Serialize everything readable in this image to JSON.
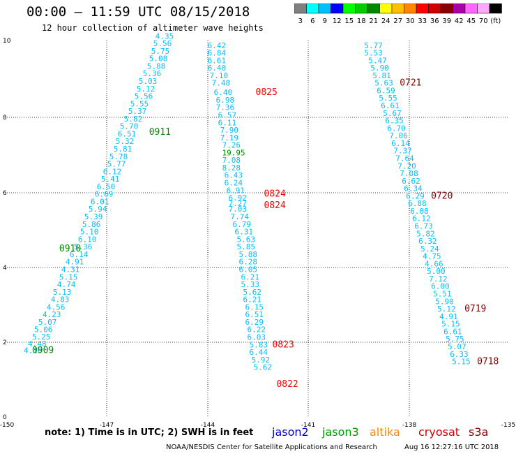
{
  "title": "00:00 – 11:59 UTC 08/15/2018",
  "subtitle": "12 hour collection of altimeter wave heights",
  "note": "note:  1) Time is in UTC;  2) SWH is in feet",
  "footer_credit": "NOAA/NESDIS Center for Satellite Applications and Research",
  "footer_timestamp": "Aug 16 12:27:16 UTC 2018",
  "satellites": [
    {
      "name": "jason2",
      "color": "#0000cc"
    },
    {
      "name": "jason3",
      "color": "#009900"
    },
    {
      "name": "altika",
      "color": "#ff8800"
    },
    {
      "name": "cryosat",
      "color": "#cc0000"
    },
    {
      "name": "s3a",
      "color": "#880000"
    }
  ],
  "colorbar": {
    "labels": [
      "3",
      "6",
      "9",
      "12",
      "15",
      "18",
      "21",
      "24",
      "27",
      "30",
      "33",
      "36",
      "39",
      "42",
      "45",
      "70",
      "(ft)"
    ],
    "colors": [
      "#808080",
      "#00ffff",
      "#00bfff",
      "#0000ff",
      "#00ff00",
      "#00cc00",
      "#008800",
      "#ffff00",
      "#ffbf00",
      "#ff8800",
      "#ff0000",
      "#cc0000",
      "#880000",
      "#aa00aa",
      "#ff66ff",
      "#ffaaff",
      "#000000"
    ]
  },
  "chart_data": {
    "type": "scatter",
    "xlim": [
      -150,
      -138
    ],
    "ylim": [
      0,
      10
    ],
    "x_ticks": [
      "-150",
      "-147",
      "-144",
      "-141",
      "-138",
      "-135"
    ],
    "y_ticks": [
      "0",
      "2",
      "4",
      "6",
      "8",
      "10"
    ],
    "grid": true,
    "tracks": [
      {
        "points": [
          [
            -149.6,
            1.7,
            "4.16"
          ],
          [
            -149.5,
            1.87,
            "4.48"
          ],
          [
            -149.4,
            2.06,
            "5.25"
          ],
          [
            -149.35,
            2.25,
            "5.06"
          ],
          [
            -149.25,
            2.45,
            "5.07"
          ],
          [
            -149.15,
            2.65,
            "4.23"
          ],
          [
            -149.05,
            2.85,
            "4.56"
          ],
          [
            -148.95,
            3.05,
            "4.83"
          ],
          [
            -148.9,
            3.25,
            "5.13"
          ],
          [
            -148.8,
            3.45,
            "4.74"
          ],
          [
            -148.75,
            3.65,
            "5.15"
          ],
          [
            -148.7,
            3.85,
            "4.31"
          ],
          [
            -148.6,
            4.05,
            "4.91"
          ],
          [
            -148.5,
            4.25,
            "6.14"
          ],
          [
            -148.4,
            4.45,
            "5.36"
          ],
          [
            -148.3,
            4.65,
            "6.10"
          ],
          [
            -148.25,
            4.85,
            "5.10"
          ],
          [
            -148.2,
            5.05,
            "5.86"
          ],
          [
            -148.15,
            5.25,
            "5.39"
          ],
          [
            -148.05,
            5.45,
            "5.94"
          ],
          [
            -148.0,
            5.65,
            "6.01"
          ],
          [
            -147.9,
            5.85,
            "6.69"
          ],
          [
            -147.85,
            6.05,
            "6.50"
          ],
          [
            -147.75,
            6.25,
            "5.41"
          ],
          [
            -147.7,
            6.45,
            "6.12"
          ],
          [
            -147.6,
            6.65,
            "5.77"
          ],
          [
            -147.55,
            6.85,
            "5.78"
          ],
          [
            -147.45,
            7.05,
            "5.81"
          ],
          [
            -147.4,
            7.25,
            "5.32"
          ],
          [
            -147.35,
            7.45,
            "6.51"
          ],
          [
            -147.3,
            7.65,
            "5.70"
          ],
          [
            -147.2,
            7.85,
            "5.82"
          ],
          [
            -147.1,
            8.05,
            "5.37"
          ],
          [
            -147.05,
            8.25,
            "5.55"
          ],
          [
            -146.95,
            8.45,
            "5.56"
          ],
          [
            -146.9,
            8.65,
            "5.12"
          ],
          [
            -146.85,
            8.85,
            "5.03"
          ],
          [
            -146.75,
            9.05,
            "5.36"
          ],
          [
            -146.65,
            9.25,
            "5.88"
          ],
          [
            -146.6,
            9.45,
            "5.08"
          ],
          [
            -146.55,
            9.65,
            "5.75"
          ],
          [
            -146.5,
            9.85,
            "5.56"
          ],
          [
            -146.45,
            10.05,
            "4.35"
          ]
        ],
        "time_labels": [
          [
            -149.4,
            1.7,
            "0909",
            "#008800"
          ],
          [
            -148.75,
            4.4,
            "0910",
            "#008800"
          ],
          [
            -146.6,
            7.5,
            "0911",
            "#008800"
          ]
        ]
      },
      {
        "points": [
          [
            -145.2,
            9.8,
            "6.42"
          ],
          [
            -145.2,
            9.6,
            "6.84"
          ],
          [
            -145.2,
            9.4,
            "6.61"
          ],
          [
            -145.2,
            9.2,
            "6.40"
          ],
          [
            -145.15,
            9.0,
            "7.10"
          ],
          [
            -145.1,
            8.8,
            "7.48"
          ],
          [
            -145.05,
            8.55,
            "6.40"
          ],
          [
            -145.0,
            8.35,
            "6.98"
          ],
          [
            -145.0,
            8.15,
            "7.36"
          ],
          [
            -144.95,
            7.95,
            "6.57"
          ],
          [
            -144.95,
            7.75,
            "6.11"
          ],
          [
            -144.9,
            7.55,
            "7.90"
          ],
          [
            -144.9,
            7.35,
            "7.19"
          ],
          [
            -144.85,
            7.15,
            "7.26"
          ],
          [
            -144.85,
            6.95,
            "19.95",
            "#008800"
          ],
          [
            -144.85,
            6.75,
            "7.08"
          ],
          [
            -144.85,
            6.55,
            "8.28"
          ],
          [
            -144.8,
            6.35,
            "6.43"
          ],
          [
            -144.8,
            6.15,
            "6.24"
          ],
          [
            -144.75,
            5.95,
            "6.91"
          ],
          [
            -144.7,
            5.75,
            "6.92"
          ],
          [
            -144.7,
            5.6,
            "7.27"
          ],
          [
            -144.7,
            5.45,
            "7.03"
          ],
          [
            -144.65,
            5.25,
            "7.74"
          ],
          [
            -144.6,
            5.05,
            "6.79"
          ],
          [
            -144.55,
            4.85,
            "6.31"
          ],
          [
            -144.5,
            4.65,
            "5.63"
          ],
          [
            -144.5,
            4.45,
            "5.85"
          ],
          [
            -144.45,
            4.25,
            "5.88"
          ],
          [
            -144.45,
            4.05,
            "6.28"
          ],
          [
            -144.45,
            3.85,
            "6.05"
          ],
          [
            -144.4,
            3.65,
            "6.21"
          ],
          [
            -144.4,
            3.45,
            "5.33"
          ],
          [
            -144.35,
            3.25,
            "5.62"
          ],
          [
            -144.35,
            3.05,
            "6.21"
          ],
          [
            -144.3,
            2.85,
            "6.15"
          ],
          [
            -144.3,
            2.65,
            "6.51"
          ],
          [
            -144.3,
            2.45,
            "6.29"
          ],
          [
            -144.25,
            2.25,
            "6.22"
          ],
          [
            -144.25,
            2.05,
            "6.03"
          ],
          [
            -144.2,
            1.85,
            "5.83"
          ],
          [
            -144.2,
            1.65,
            "6.44"
          ],
          [
            -144.15,
            1.45,
            "5.92"
          ],
          [
            -144.1,
            1.25,
            "5.62"
          ]
        ],
        "time_labels": [
          [
            -144.05,
            8.55,
            "0825",
            "#ff0000"
          ],
          [
            -143.85,
            5.85,
            "0824",
            "#ff0000"
          ],
          [
            -143.85,
            5.55,
            "0824",
            "#ff0000"
          ],
          [
            -143.65,
            1.85,
            "0823",
            "#ff0000"
          ],
          [
            -143.55,
            0.8,
            "0822",
            "#ff0000"
          ]
        ]
      },
      {
        "points": [
          [
            -141.45,
            9.8,
            "5.77"
          ],
          [
            -141.45,
            9.6,
            "5.53"
          ],
          [
            -141.35,
            9.4,
            "5.47"
          ],
          [
            -141.3,
            9.2,
            "5.90"
          ],
          [
            -141.25,
            9.0,
            "5.81"
          ],
          [
            -141.2,
            8.8,
            "5.63"
          ],
          [
            -141.15,
            8.6,
            "6.59"
          ],
          [
            -141.1,
            8.4,
            "5.55"
          ],
          [
            -141.05,
            8.2,
            "6.61"
          ],
          [
            -141.0,
            8.0,
            "5.67"
          ],
          [
            -140.95,
            7.8,
            "6.35"
          ],
          [
            -140.9,
            7.6,
            "6.70"
          ],
          [
            -140.85,
            7.4,
            "7.06"
          ],
          [
            -140.8,
            7.2,
            "6.14"
          ],
          [
            -140.75,
            7.0,
            "7.37"
          ],
          [
            -140.7,
            6.8,
            "7.64"
          ],
          [
            -140.65,
            6.6,
            "7.20"
          ],
          [
            -140.6,
            6.4,
            "7.08"
          ],
          [
            -140.55,
            6.2,
            "6.62"
          ],
          [
            -140.5,
            6.0,
            "6.34"
          ],
          [
            -140.45,
            5.8,
            "6.29"
          ],
          [
            -140.4,
            5.6,
            "6.88"
          ],
          [
            -140.35,
            5.4,
            "6.08"
          ],
          [
            -140.3,
            5.2,
            "6.12"
          ],
          [
            -140.25,
            5.0,
            "6.73"
          ],
          [
            -140.2,
            4.8,
            "5.82"
          ],
          [
            -140.15,
            4.6,
            "6.32"
          ],
          [
            -140.1,
            4.4,
            "5.24"
          ],
          [
            -140.05,
            4.2,
            "4.75"
          ],
          [
            -140.0,
            4.0,
            "4.66"
          ],
          [
            -139.95,
            3.8,
            "5.00"
          ],
          [
            -139.9,
            3.6,
            "7.12"
          ],
          [
            -139.85,
            3.4,
            "6.00"
          ],
          [
            -139.8,
            3.2,
            "5.51"
          ],
          [
            -139.75,
            3.0,
            "5.90"
          ],
          [
            -139.7,
            2.8,
            "5.12"
          ],
          [
            -139.65,
            2.6,
            "4.91"
          ],
          [
            -139.6,
            2.4,
            "5.15"
          ],
          [
            -139.55,
            2.2,
            "6.61"
          ],
          [
            -139.5,
            2.0,
            "5.75"
          ],
          [
            -139.45,
            1.8,
            "5.07"
          ],
          [
            -139.4,
            1.6,
            "6.33"
          ],
          [
            -139.35,
            1.4,
            "5.15"
          ]
        ],
        "time_labels": [
          [
            -140.6,
            8.8,
            "0721",
            "#880000"
          ],
          [
            -139.85,
            5.8,
            "0720",
            "#880000"
          ],
          [
            -139.05,
            2.8,
            "0719",
            "#880000"
          ],
          [
            -138.75,
            1.4,
            "0718",
            "#880000"
          ]
        ]
      }
    ]
  }
}
